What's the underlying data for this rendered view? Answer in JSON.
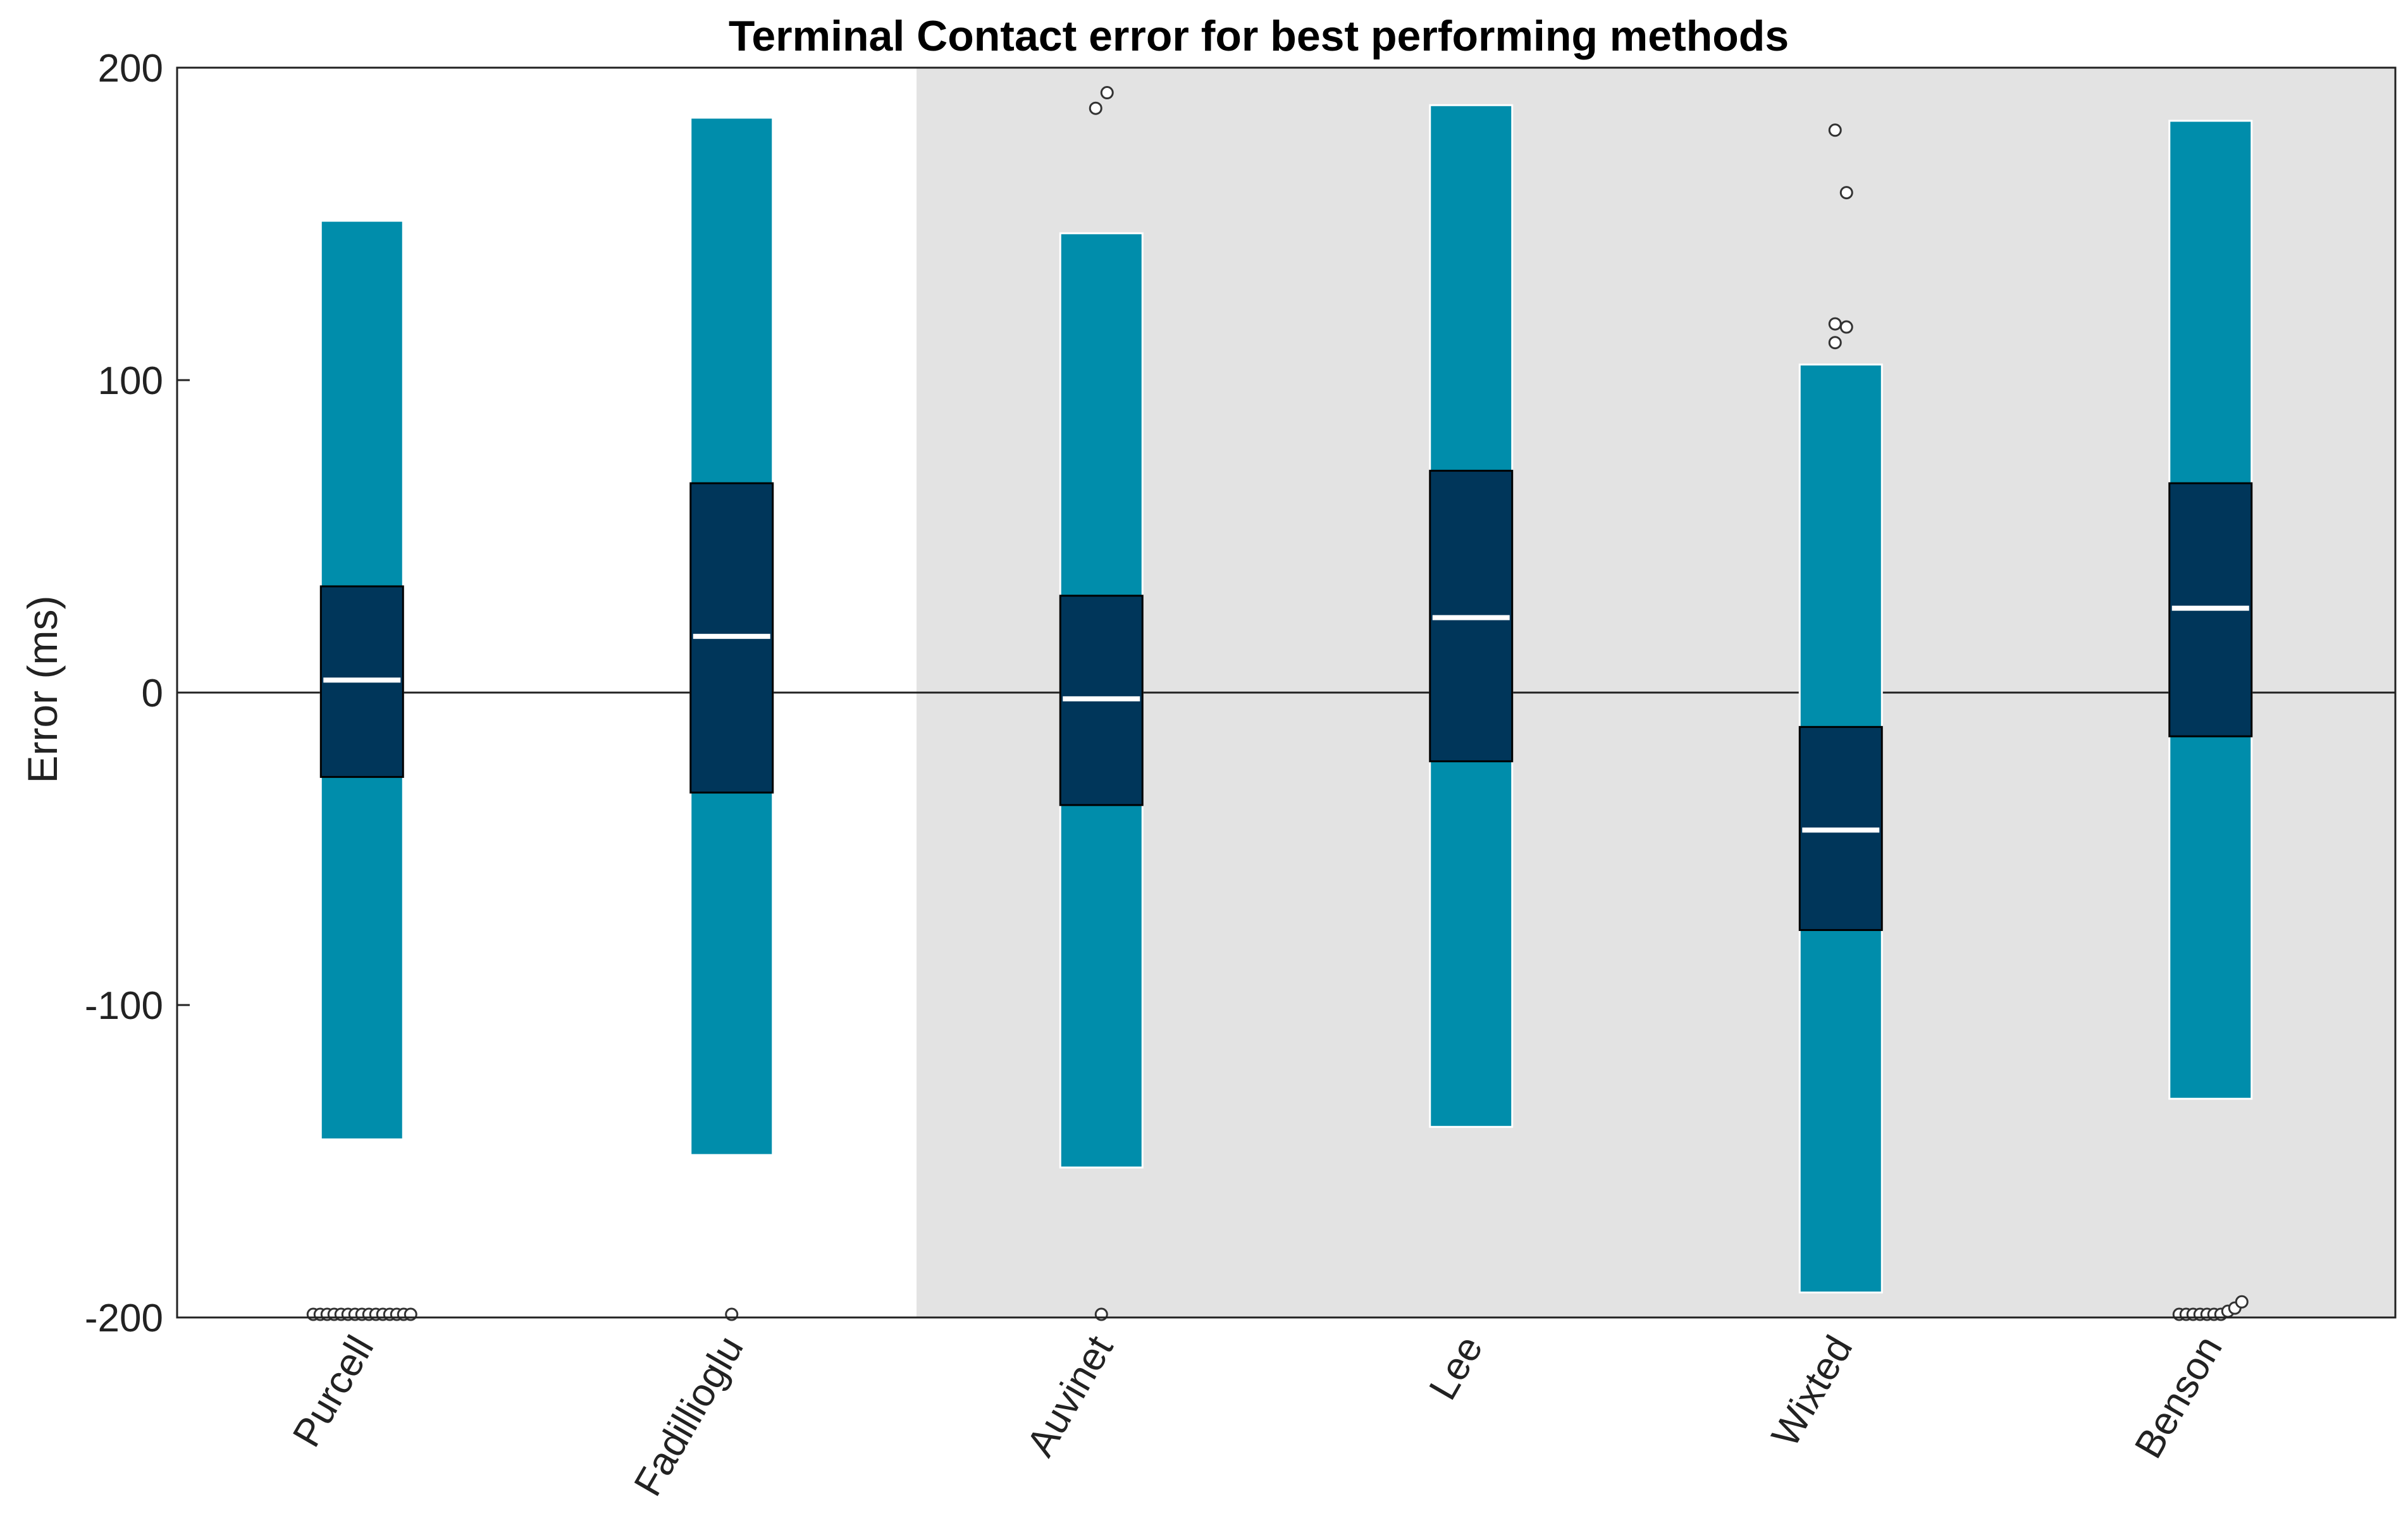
{
  "chart_data": {
    "type": "boxplot",
    "title": "Terminal Contact error for best performing methods",
    "xlabel": "",
    "ylabel": "Error (ms)",
    "ylim": [
      -200,
      200
    ],
    "yticks": [
      -200,
      -100,
      0,
      100,
      200
    ],
    "ytick_labels": [
      "-200",
      "-100",
      "0",
      "100",
      "200"
    ],
    "reference_line": 0,
    "highlight_region": {
      "from_category": "Auvinet",
      "to_category": "Benson",
      "color": "#e3e3e3"
    },
    "colors": {
      "whisker": "#008DAB",
      "box": "#00365A",
      "median": "#ffffff",
      "outlier_fill": "#ffffff",
      "outlier_stroke": "#333333"
    },
    "categories": [
      "Purcell",
      "Fadillioglu",
      "Auvinet",
      "Lee",
      "Wixted",
      "Benson"
    ],
    "boxes": [
      {
        "name": "Purcell",
        "whisker_low": -143,
        "q1": -27,
        "median": 4,
        "q3": 34,
        "whisker_high": 151,
        "outliers": [
          -199,
          -199,
          -199,
          -199,
          -199,
          -199,
          -199,
          -199,
          -199,
          -199,
          -199,
          -199,
          -199,
          -199,
          -199
        ]
      },
      {
        "name": "Fadillioglu",
        "whisker_low": -148,
        "q1": -32,
        "median": 18,
        "q3": 67,
        "whisker_high": 184,
        "outliers": [
          -199
        ]
      },
      {
        "name": "Auvinet",
        "whisker_low": -152,
        "q1": -36,
        "median": -2,
        "q3": 31,
        "whisker_high": 147,
        "outliers": [
          -199,
          187,
          192
        ]
      },
      {
        "name": "Lee",
        "whisker_low": -139,
        "q1": -22,
        "median": 24,
        "q3": 71,
        "whisker_high": 188,
        "outliers": []
      },
      {
        "name": "Wixted",
        "whisker_low": -192,
        "q1": -76,
        "median": -44,
        "q3": -11,
        "whisker_high": 105,
        "outliers": [
          112,
          117,
          118,
          160,
          180
        ]
      },
      {
        "name": "Benson",
        "whisker_low": -130,
        "q1": -14,
        "median": 27,
        "q3": 67,
        "whisker_high": 183,
        "outliers": [
          -199,
          -199,
          -199,
          -199,
          -199,
          -199,
          -199,
          -198,
          -197,
          -195
        ]
      }
    ]
  }
}
